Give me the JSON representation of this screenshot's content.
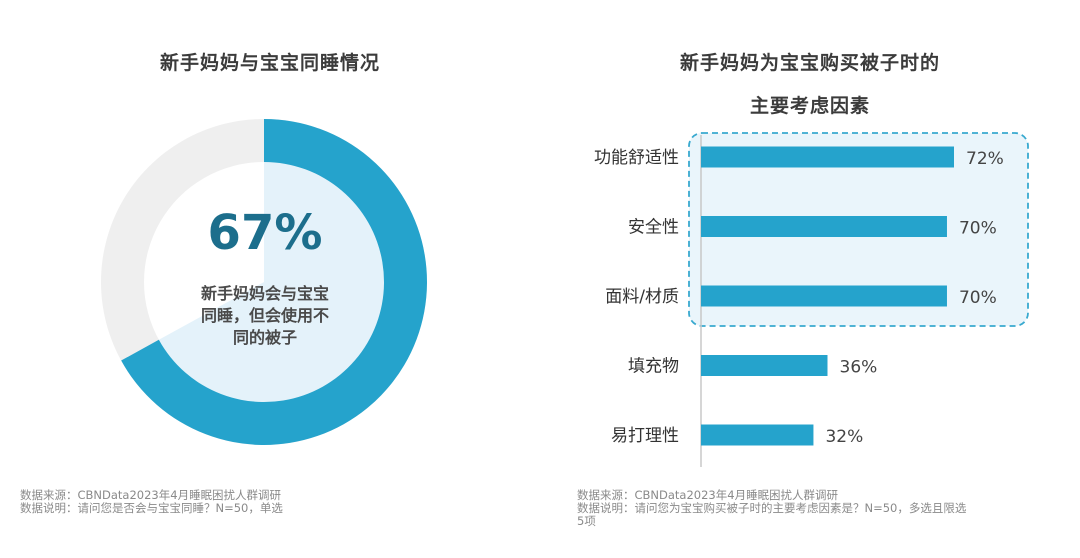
{
  "colors": {
    "accent": "#25a3cc",
    "track": "#efefef",
    "inner": "#e4f2fa",
    "highlight_fill": "#eaf5fb",
    "highlight_border": "#38a9cf",
    "percent_text": "#1c6e8c"
  },
  "chart_data": [
    {
      "type": "pie",
      "title": "新手妈妈与宝宝同睡情况",
      "center_value": "67%",
      "center_label": "新手妈妈会与宝宝同睡，但会使用不同的被子",
      "center_label_lines": [
        "新手妈妈会与宝宝",
        "同睡，但会使用不",
        "同的被子"
      ],
      "values": [
        67,
        33
      ]
    },
    {
      "type": "bar",
      "orientation": "horizontal",
      "title_lines": [
        "新手妈妈为宝宝购买被子时的",
        "主要考虑因素"
      ],
      "categories": [
        "功能舒适性",
        "安全性",
        "面料/材质",
        "填充物",
        "易打理性"
      ],
      "values": [
        72,
        70,
        70,
        36,
        32
      ],
      "value_labels": [
        "72%",
        "70%",
        "70%",
        "36%",
        "32%"
      ],
      "highlighted_count": 3,
      "xlim": [
        0,
        80
      ]
    }
  ],
  "footnotes": {
    "left": {
      "source": "数据来源：CBNData2023年4月睡眠困扰人群调研",
      "note": "数据说明：请问您是否会与宝宝同睡？N=50，单选"
    },
    "right": {
      "source": "数据来源：CBNData2023年4月睡眠困扰人群调研",
      "note_line1": "数据说明：请问您为宝宝购买被子时的主要考虑因素是？N=50，多选且限选",
      "note_line2": "5项"
    }
  }
}
